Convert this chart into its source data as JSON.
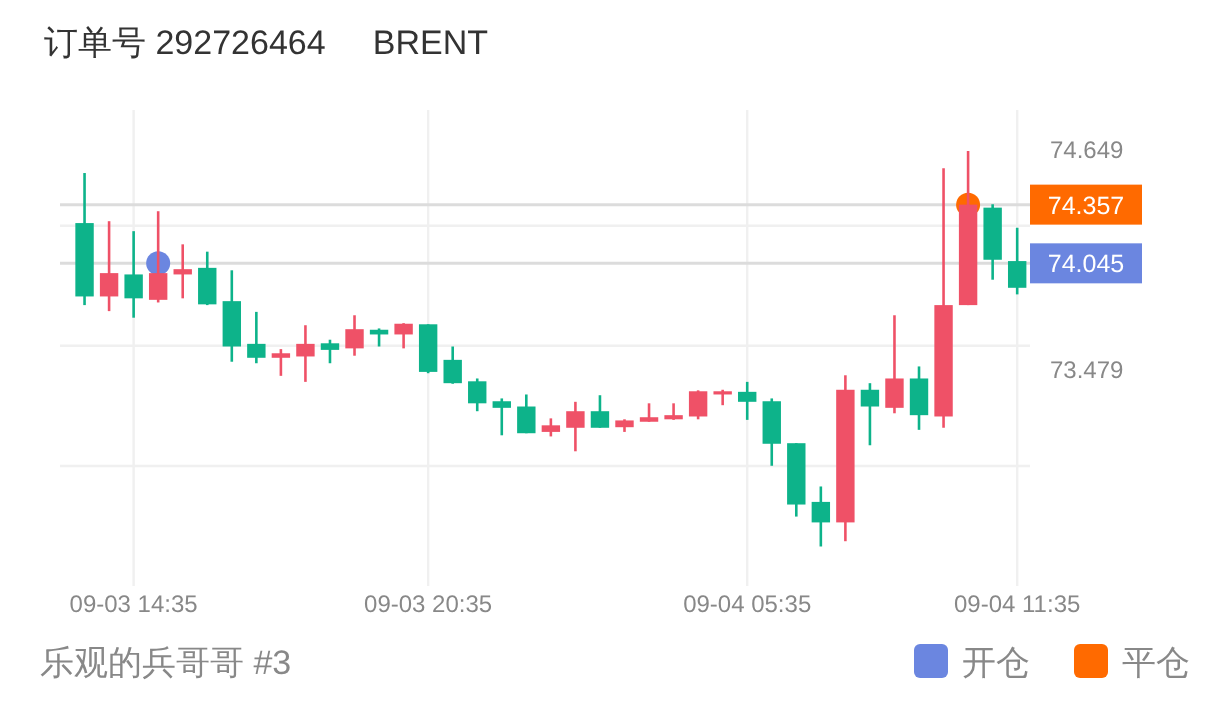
{
  "chart_data": {
    "type": "candlestick",
    "title": "订单号 292726464     BRENT",
    "annotations": [
      "乐观的兵哥哥 #3"
    ],
    "ylim": [
      72.33,
      74.86
    ],
    "categories": [
      null,
      null,
      "09-03 14:35",
      null,
      null,
      null,
      null,
      null,
      null,
      null,
      null,
      null,
      null,
      null,
      "09-03 20:35",
      null,
      null,
      null,
      null,
      null,
      null,
      null,
      null,
      null,
      null,
      null,
      null,
      "09-04 05:35",
      null,
      null,
      null,
      null,
      null,
      null,
      null,
      null,
      null,
      null,
      "09-04 11:35"
    ],
    "yticks": [
      74.649,
      {
        "value": 74.245,
        "label": null
      },
      {
        "value": 73.607,
        "label": null
      },
      73.479,
      {
        "value": 72.968,
        "label": null
      }
    ],
    "grid": true,
    "legend": "bottom right",
    "marker": "circle",
    "ref_lines": [
      {
        "axis": "y",
        "value": 74.357,
        "label": "74.357",
        "color": "#dcdcdc"
      },
      {
        "axis": "y",
        "value": 74.045,
        "label": "74.045",
        "color": "#dcdcdc"
      }
    ],
    "series": [
      {
        "ohlc": [
          [
            74.259,
            74.525,
            73.823,
            73.869
          ],
          [
            73.869,
            74.269,
            73.791,
            73.993
          ],
          [
            73.986,
            74.216,
            73.756,
            73.859
          ],
          [
            73.851,
            74.322,
            73.837,
            73.993
          ],
          [
            73.986,
            74.146,
            73.859,
            74.014
          ],
          [
            74.021,
            74.107,
            73.823,
            73.827
          ],
          [
            73.844,
            74.008,
            73.522,
            73.603
          ],
          [
            73.617,
            73.787,
            73.514,
            73.543
          ],
          [
            73.543,
            73.589,
            73.447,
            73.567
          ],
          [
            73.55,
            73.716,
            73.415,
            73.617
          ],
          [
            73.62,
            73.639,
            73.514,
            73.585
          ],
          [
            73.593,
            73.769,
            73.554,
            73.695
          ],
          [
            73.692,
            73.699,
            73.603,
            73.667
          ],
          [
            73.667,
            73.727,
            73.593,
            73.724
          ],
          [
            73.721,
            73.721,
            73.461,
            73.468
          ],
          [
            73.532,
            73.603,
            73.405,
            73.408
          ],
          [
            73.418,
            73.433,
            73.259,
            73.301
          ],
          [
            73.312,
            73.327,
            73.131,
            73.277
          ],
          [
            73.284,
            73.348,
            73.142,
            73.142
          ],
          [
            73.149,
            73.221,
            73.125,
            73.184
          ],
          [
            73.171,
            73.309,
            73.046,
            73.259
          ],
          [
            73.259,
            73.344,
            73.171,
            73.171
          ],
          [
            73.174,
            73.216,
            73.149,
            73.21
          ],
          [
            73.203,
            73.301,
            73.203,
            73.227
          ],
          [
            73.216,
            73.301,
            73.213,
            73.238
          ],
          [
            73.231,
            73.37,
            73.216,
            73.365
          ],
          [
            73.348,
            73.373,
            73.291,
            73.365
          ],
          [
            73.362,
            73.415,
            73.213,
            73.309
          ],
          [
            73.312,
            73.327,
            72.969,
            73.086
          ],
          [
            73.089,
            73.089,
            72.699,
            72.763
          ],
          [
            72.777,
            72.859,
            72.54,
            72.668
          ],
          [
            72.668,
            73.45,
            72.568,
            73.373
          ],
          [
            73.373,
            73.408,
            73.078,
            73.284
          ],
          [
            73.277,
            73.769,
            73.248,
            73.433
          ],
          [
            73.433,
            73.497,
            73.16,
            73.238
          ],
          [
            73.231,
            74.55,
            73.171,
            73.823
          ],
          [
            73.823,
            74.642,
            73.823,
            74.357
          ],
          [
            74.341,
            74.359,
            73.958,
            74.064
          ],
          [
            74.057,
            74.234,
            73.88,
            73.915
          ]
        ],
        "colors": [
          "#0db38a",
          "#ef5167",
          "#0db38a",
          "#ef5167",
          "#ef5167",
          "#0db38a",
          "#0db38a",
          "#0db38a",
          "#ef5167",
          "#ef5167",
          "#0db38a",
          "#ef5167",
          "#0db38a",
          "#ef5167",
          "#0db38a",
          "#0db38a",
          "#0db38a",
          "#0db38a",
          "#0db38a",
          "#ef5167",
          "#ef5167",
          "#0db38a",
          "#ef5167",
          "#ef5167",
          "#ef5167",
          "#ef5167",
          "#ef5167",
          "#0db38a",
          "#0db38a",
          "#0db38a",
          "#0db38a",
          "#ef5167",
          "#0db38a",
          "#ef5167",
          "#0db38a",
          "#ef5167",
          "#ef5167",
          "#0db38a",
          "#0db38a"
        ]
      },
      {
        "type": "scatter",
        "name": "开仓",
        "color": "#6b86e0",
        "values": [
          null,
          null,
          null,
          74.045,
          null,
          null,
          null,
          null,
          null,
          null,
          null,
          null,
          null,
          null,
          null,
          null,
          null,
          null,
          null,
          null,
          null,
          null,
          null,
          null,
          null,
          null,
          null,
          null,
          null,
          null,
          null,
          null,
          null,
          null,
          null,
          null,
          null,
          null,
          null
        ]
      },
      {
        "type": "scatter",
        "name": "平仓",
        "color": "#ff6a00",
        "values": [
          null,
          null,
          null,
          null,
          null,
          null,
          null,
          null,
          null,
          null,
          null,
          null,
          null,
          null,
          null,
          null,
          null,
          null,
          null,
          null,
          null,
          null,
          null,
          null,
          null,
          null,
          null,
          null,
          null,
          null,
          null,
          null,
          null,
          null,
          null,
          null,
          74.357,
          null,
          null
        ]
      }
    ]
  }
}
